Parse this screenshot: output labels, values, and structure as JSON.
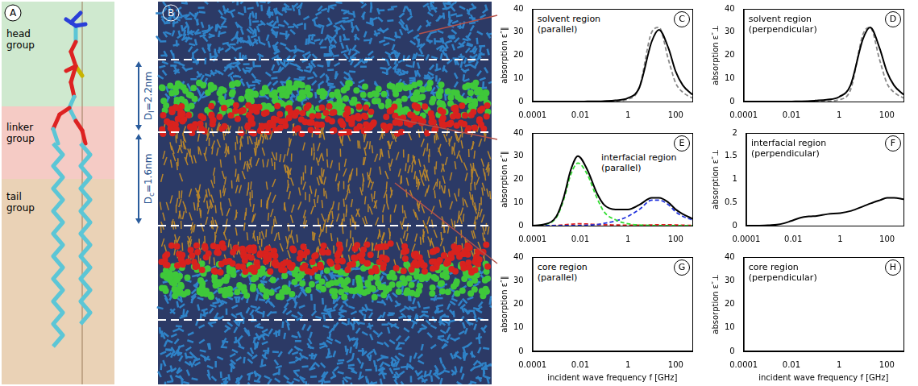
{
  "figure": {
    "A": {
      "letter": "A",
      "labels": [
        "head group",
        "linker group",
        "tail group"
      ]
    },
    "B": {
      "letter": "B",
      "dimensions": [
        {
          "symbol": "D",
          "subscript": "I",
          "text": "=2.2nm"
        },
        {
          "symbol": "D",
          "subscript": "c",
          "text": "=1.6nm"
        }
      ]
    }
  },
  "chart_data": [
    {
      "type": "line",
      "panel": "C",
      "title": "solvent region (parallel)",
      "y_label": "absorption ε″∥",
      "log": "x",
      "grid": false,
      "xlim": [
        0.0001,
        500
      ],
      "xticks": [
        0.0001,
        0.01,
        1,
        100
      ],
      "ylim": [
        0,
        40
      ],
      "yticks": [
        0,
        10,
        20,
        30,
        40
      ],
      "x": [
        0.0001,
        0.0003,
        0.001,
        0.002,
        0.004,
        0.008,
        0.02,
        0.05,
        0.1,
        0.3,
        1,
        3,
        10,
        20,
        50,
        100,
        200,
        500
      ],
      "series": [
        {
          "color": "#000000",
          "line_style": "solid",
          "values": [
            0,
            0,
            0,
            0,
            0,
            0,
            0.05,
            0.1,
            0.2,
            0.5,
            1.5,
            6,
            26,
            31,
            23,
            13,
            7,
            3
          ]
        },
        {
          "color": "#888888",
          "line_style": "dashed",
          "values": [
            0,
            0,
            0,
            0,
            0,
            0,
            0,
            0,
            0.1,
            0.3,
            1,
            6,
            30,
            32,
            18,
            8,
            4,
            1.5
          ]
        }
      ]
    },
    {
      "type": "line",
      "panel": "D",
      "title": "solvent region (perpendicular)",
      "y_label": "absorption ε″⊥",
      "log": "x",
      "grid": false,
      "xlim": [
        0.0001,
        500
      ],
      "xticks": [
        0.0001,
        0.01,
        1,
        100
      ],
      "ylim": [
        0,
        40
      ],
      "yticks": [
        0,
        10,
        20,
        30,
        40
      ],
      "x": [
        0.0001,
        0.0003,
        0.001,
        0.002,
        0.004,
        0.008,
        0.02,
        0.05,
        0.1,
        0.3,
        1,
        3,
        10,
        20,
        50,
        100,
        200,
        500
      ],
      "series": [
        {
          "color": "#000000",
          "line_style": "solid",
          "values": [
            0,
            0,
            0,
            0,
            0,
            0,
            0.1,
            0.2,
            0.4,
            0.8,
            2,
            7,
            27,
            32,
            23,
            13,
            7,
            3
          ]
        },
        {
          "color": "#888888",
          "line_style": "dashed",
          "values": [
            0,
            0,
            0,
            0,
            0,
            0,
            0,
            0,
            0,
            0.2,
            0.8,
            5,
            29,
            32,
            18,
            8,
            4,
            1.5
          ]
        }
      ]
    },
    {
      "type": "line",
      "panel": "E",
      "title": "interfacial region (parallel)",
      "y_label": "absorption ε″∥",
      "log": "x",
      "grid": false,
      "xlim": [
        0.0001,
        500
      ],
      "xticks": [
        0.0001,
        0.01,
        1,
        100
      ],
      "ylim": [
        0,
        40
      ],
      "yticks": [
        0,
        10,
        20,
        30,
        40
      ],
      "x": [
        0.0001,
        0.0003,
        0.001,
        0.002,
        0.004,
        0.008,
        0.02,
        0.05,
        0.1,
        0.3,
        1,
        3,
        10,
        20,
        50,
        100,
        200,
        500
      ],
      "series": [
        {
          "color": "#000000",
          "line_style": "solid",
          "values": [
            0,
            0.5,
            4,
            12,
            24,
            30,
            24,
            14,
            9,
            7,
            7,
            9,
            12,
            12,
            10,
            7,
            5,
            3
          ]
        },
        {
          "color": "#33dd33",
          "line_style": "dashed",
          "values": [
            0,
            0.4,
            3.5,
            11,
            22,
            27,
            22,
            12,
            6,
            2.5,
            0.8,
            0.3,
            0.1,
            0,
            0,
            0,
            0,
            0
          ]
        },
        {
          "color": "#2233dd",
          "line_style": "dashed",
          "values": [
            0,
            0,
            0,
            0,
            0,
            0,
            0.2,
            0.5,
            1,
            2,
            4,
            7,
            11,
            11,
            9,
            6,
            4,
            2.5
          ]
        },
        {
          "color": "#dd2222",
          "line_style": "dashed",
          "values": [
            0,
            0,
            0.1,
            0.3,
            0.6,
            0.8,
            0.7,
            0.5,
            0.4,
            0.3,
            0.2,
            0.2,
            0.3,
            0.4,
            0.4,
            0.3,
            0.2,
            0.1
          ]
        }
      ]
    },
    {
      "type": "line",
      "panel": "F",
      "title": "interfacial region (perpendicular)",
      "y_label": "absorption ε″⊥",
      "log": "x",
      "grid": false,
      "xlim": [
        0.0001,
        500
      ],
      "xticks": [
        0.0001,
        0.01,
        1,
        100
      ],
      "ylim": [
        0,
        2
      ],
      "yticks": [
        0,
        0.5,
        1,
        1.5,
        2
      ],
      "x": [
        0.0001,
        0.0003,
        0.001,
        0.002,
        0.004,
        0.008,
        0.02,
        0.05,
        0.1,
        0.3,
        1,
        3,
        10,
        20,
        50,
        100,
        200,
        500
      ],
      "series": [
        {
          "color": "#000000",
          "line_style": "solid",
          "values": [
            0,
            0,
            0.01,
            0.02,
            0.05,
            0.1,
            0.17,
            0.2,
            0.21,
            0.25,
            0.27,
            0.32,
            0.42,
            0.48,
            0.55,
            0.6,
            0.6,
            0.57
          ]
        }
      ]
    },
    {
      "type": "line",
      "panel": "G",
      "title": "core region (parallel)",
      "y_label": "absorption ε″∥",
      "x_label": "incident wave frequency f [GHz]",
      "log": "x",
      "grid": false,
      "xlim": [
        0.0001,
        500
      ],
      "xticks": [
        0.0001,
        0.01,
        1,
        100
      ],
      "ylim": [
        0,
        40
      ],
      "yticks": [
        0,
        10,
        20,
        30,
        40
      ],
      "x": [
        0.0001,
        0.0003,
        0.001,
        0.002,
        0.004,
        0.008,
        0.02,
        0.05,
        0.1,
        0.3,
        1,
        3,
        10,
        20,
        50,
        100,
        200,
        500
      ],
      "series": [
        {
          "color": "#000000",
          "line_style": "solid",
          "values": [
            0,
            0,
            0,
            0,
            0,
            0,
            0,
            0,
            0,
            0,
            0,
            0,
            0,
            0,
            0,
            0,
            0,
            0
          ]
        }
      ]
    },
    {
      "type": "line",
      "panel": "H",
      "title": "core region (perpendicular)",
      "y_label": "absorption ε″⊥",
      "x_label": "incident wave frequency f [GHz]",
      "log": "x",
      "grid": false,
      "xlim": [
        0.0001,
        500
      ],
      "xticks": [
        0.0001,
        0.01,
        1,
        100
      ],
      "ylim": [
        0,
        40
      ],
      "yticks": [
        0,
        10,
        20,
        30,
        40
      ],
      "x": [
        0.0001,
        0.0003,
        0.001,
        0.002,
        0.004,
        0.008,
        0.02,
        0.05,
        0.1,
        0.3,
        1,
        3,
        10,
        20,
        50,
        100,
        200,
        500
      ],
      "series": [
        {
          "color": "#000000",
          "line_style": "solid",
          "values": [
            0,
            0,
            0,
            0,
            0,
            0,
            0,
            0,
            0,
            0,
            0,
            0,
            0,
            0,
            0,
            0,
            0,
            0
          ]
        }
      ]
    }
  ]
}
